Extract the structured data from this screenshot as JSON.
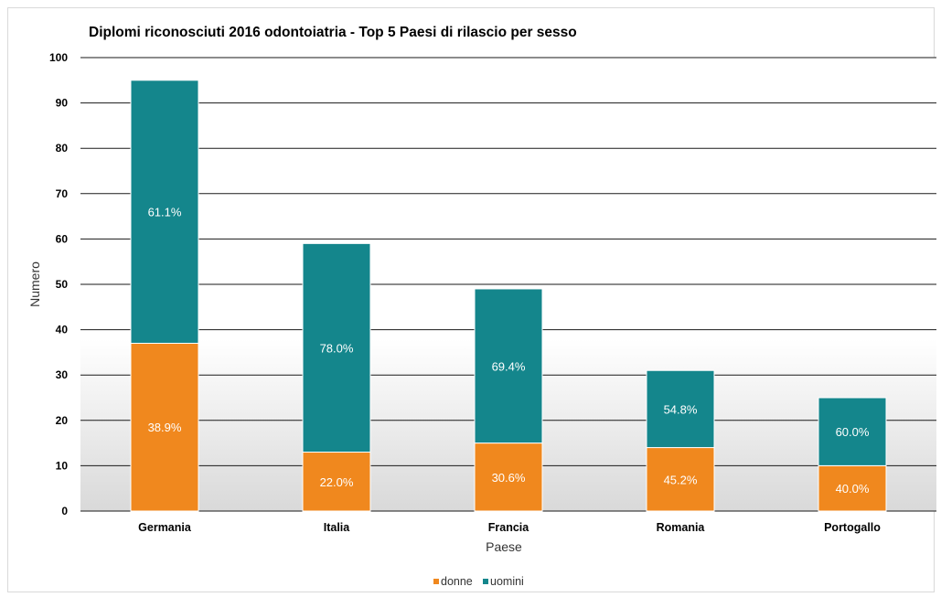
{
  "chart_data": {
    "type": "bar",
    "stacked": true,
    "title": "Diplomi riconosciuti 2016 odontoiatria - Top 5 Paesi di rilascio per sesso",
    "xlabel": "Paese",
    "ylabel": "Numero",
    "ylim": [
      0,
      100
    ],
    "yticks": [
      "0",
      "10",
      "20",
      "30",
      "40",
      "50",
      "60",
      "70",
      "80",
      "90",
      "100"
    ],
    "grid": true,
    "legend_position": "bottom",
    "categories": [
      "Germania",
      "Italia",
      "Francia",
      "Romania",
      "Portogallo"
    ],
    "series": [
      {
        "name": "donne",
        "color": "#F0881E",
        "values": [
          37,
          13,
          15,
          14,
          10
        ],
        "labels": [
          "38.9%",
          "22.0%",
          "30.6%",
          "45.2%",
          "40.0%"
        ]
      },
      {
        "name": "uomini",
        "color": "#14868C",
        "values": [
          58,
          46,
          34,
          17,
          15
        ],
        "labels": [
          "61.1%",
          "78.0%",
          "69.4%",
          "54.8%",
          "60.0%"
        ]
      }
    ]
  }
}
